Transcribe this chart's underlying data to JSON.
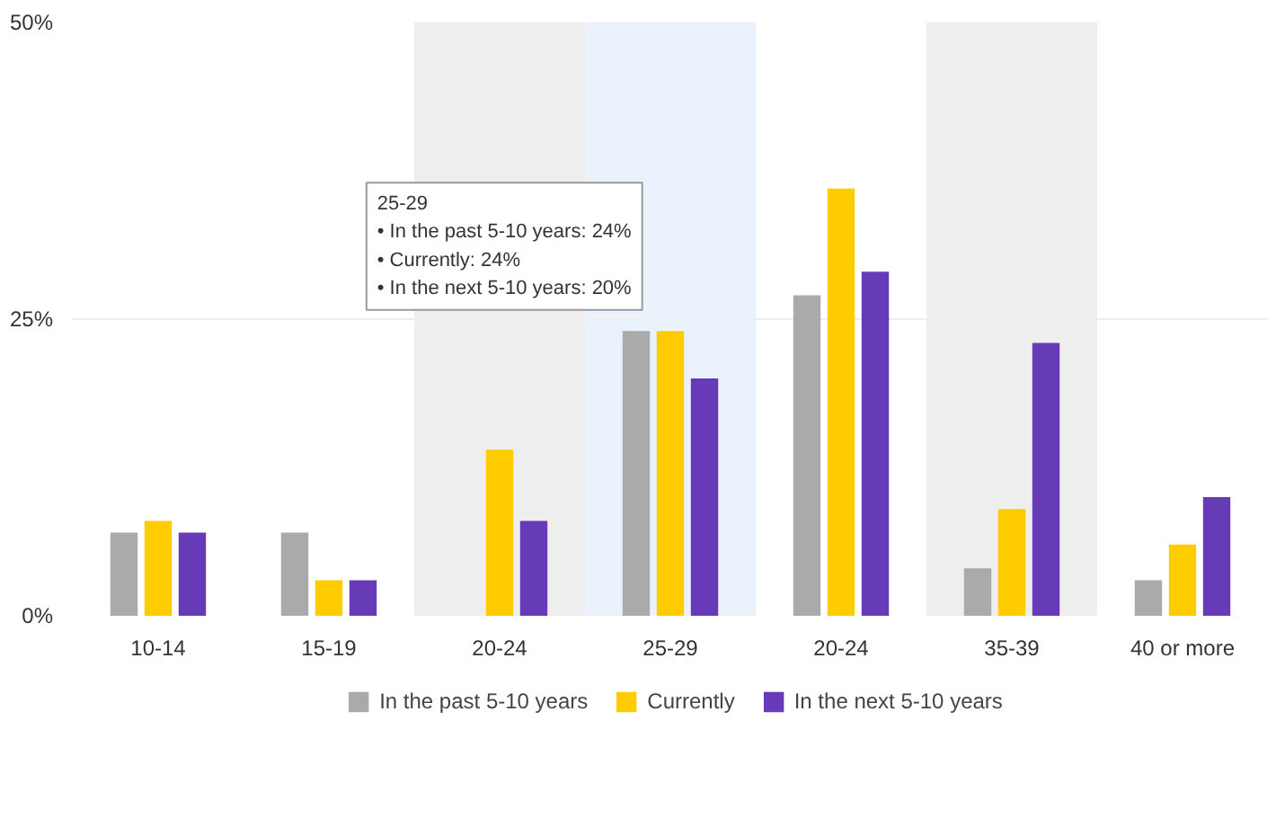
{
  "chart_data": {
    "type": "bar",
    "categories": [
      "10-14",
      "15-19",
      "20-24",
      "25-29",
      "20-24",
      "35-39",
      "40 or more"
    ],
    "series": [
      {
        "name": "In the past 5-10 years",
        "color": "#aaaaaa",
        "values": [
          7,
          7,
          null,
          24,
          27,
          4,
          3
        ]
      },
      {
        "name": "Currently",
        "color": "#ffcc00",
        "values": [
          8,
          3,
          14,
          24,
          36,
          9,
          6
        ]
      },
      {
        "name": "In the next 5-10 years",
        "color": "#673ab7",
        "values": [
          7,
          3,
          8,
          20,
          29,
          23,
          10
        ]
      }
    ],
    "ylim": [
      0,
      50
    ],
    "yticks": [
      {
        "value": 0,
        "label": "0%"
      },
      {
        "value": 25,
        "label": "25%"
      },
      {
        "value": 50,
        "label": "50%"
      }
    ],
    "grid": "y",
    "legend": "bottom",
    "bands": [
      {
        "axis": "x",
        "from": "20-24",
        "to": "20-24",
        "color": "#eeeeee"
      },
      {
        "axis": "x",
        "from": "25-29",
        "to": "25-29",
        "color": "#eaf2fd"
      },
      {
        "axis": "x",
        "from": "35-39",
        "to": "35-39",
        "color": "#eeeeee"
      }
    ],
    "annotations": [
      "25-29\n• In the past 5-10 years: 24%\n• Currently: 24%\n• In the next 5-10 years: 20%"
    ]
  }
}
